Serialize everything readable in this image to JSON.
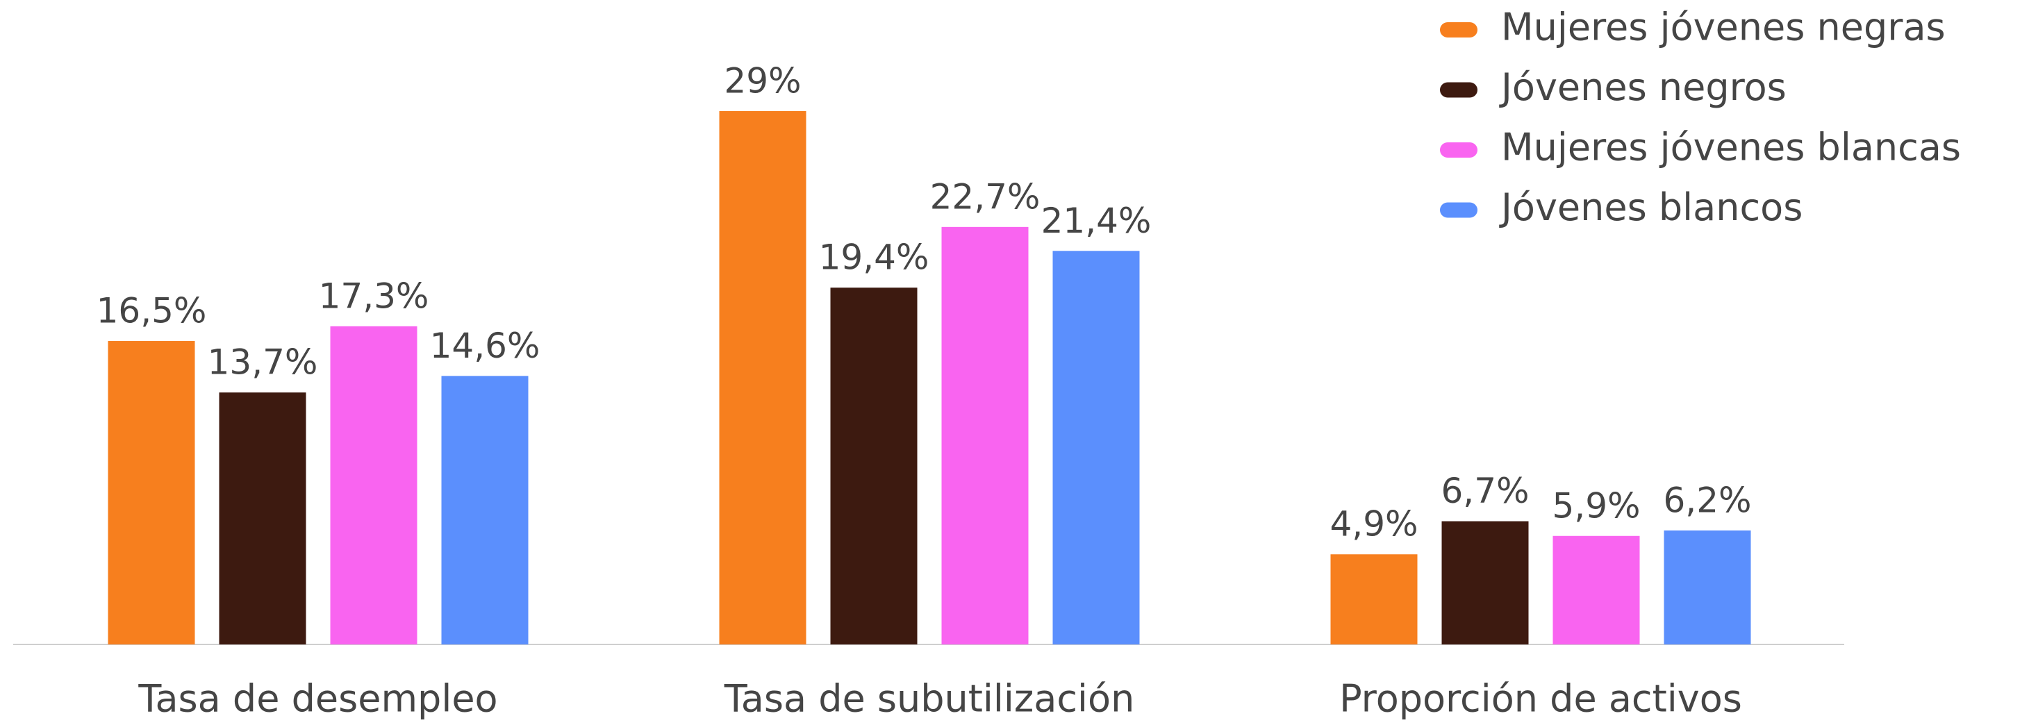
{
  "chart_data": {
    "type": "bar",
    "categories": [
      "Tasa de desempleo",
      "Tasa de subutilización",
      "Proporción de activos"
    ],
    "series": [
      {
        "name": "Mujeres jóvenes negras",
        "color": "#f77f1e",
        "values": [
          16.5,
          29,
          4.9
        ],
        "value_labels": [
          "16,5%",
          "29%",
          "4,9%"
        ]
      },
      {
        "name": "Jóvenes negros",
        "color": "#3d1a10",
        "values": [
          13.7,
          19.4,
          6.7
        ],
        "value_labels": [
          "13,7%",
          "19,4%",
          "6,7%"
        ]
      },
      {
        "name": "Mujeres jóvenes blancas",
        "color": "#f964f0",
        "values": [
          17.3,
          22.7,
          5.9
        ],
        "value_labels": [
          "17,3%",
          "22,7%",
          "5,9%"
        ]
      },
      {
        "name": "Jóvenes blancos",
        "color": "#5b8ffd",
        "values": [
          14.6,
          21.4,
          6.2
        ],
        "value_labels": [
          "14,6%",
          "21,4%",
          "6,2%"
        ]
      }
    ],
    "legend": "top-right"
  }
}
